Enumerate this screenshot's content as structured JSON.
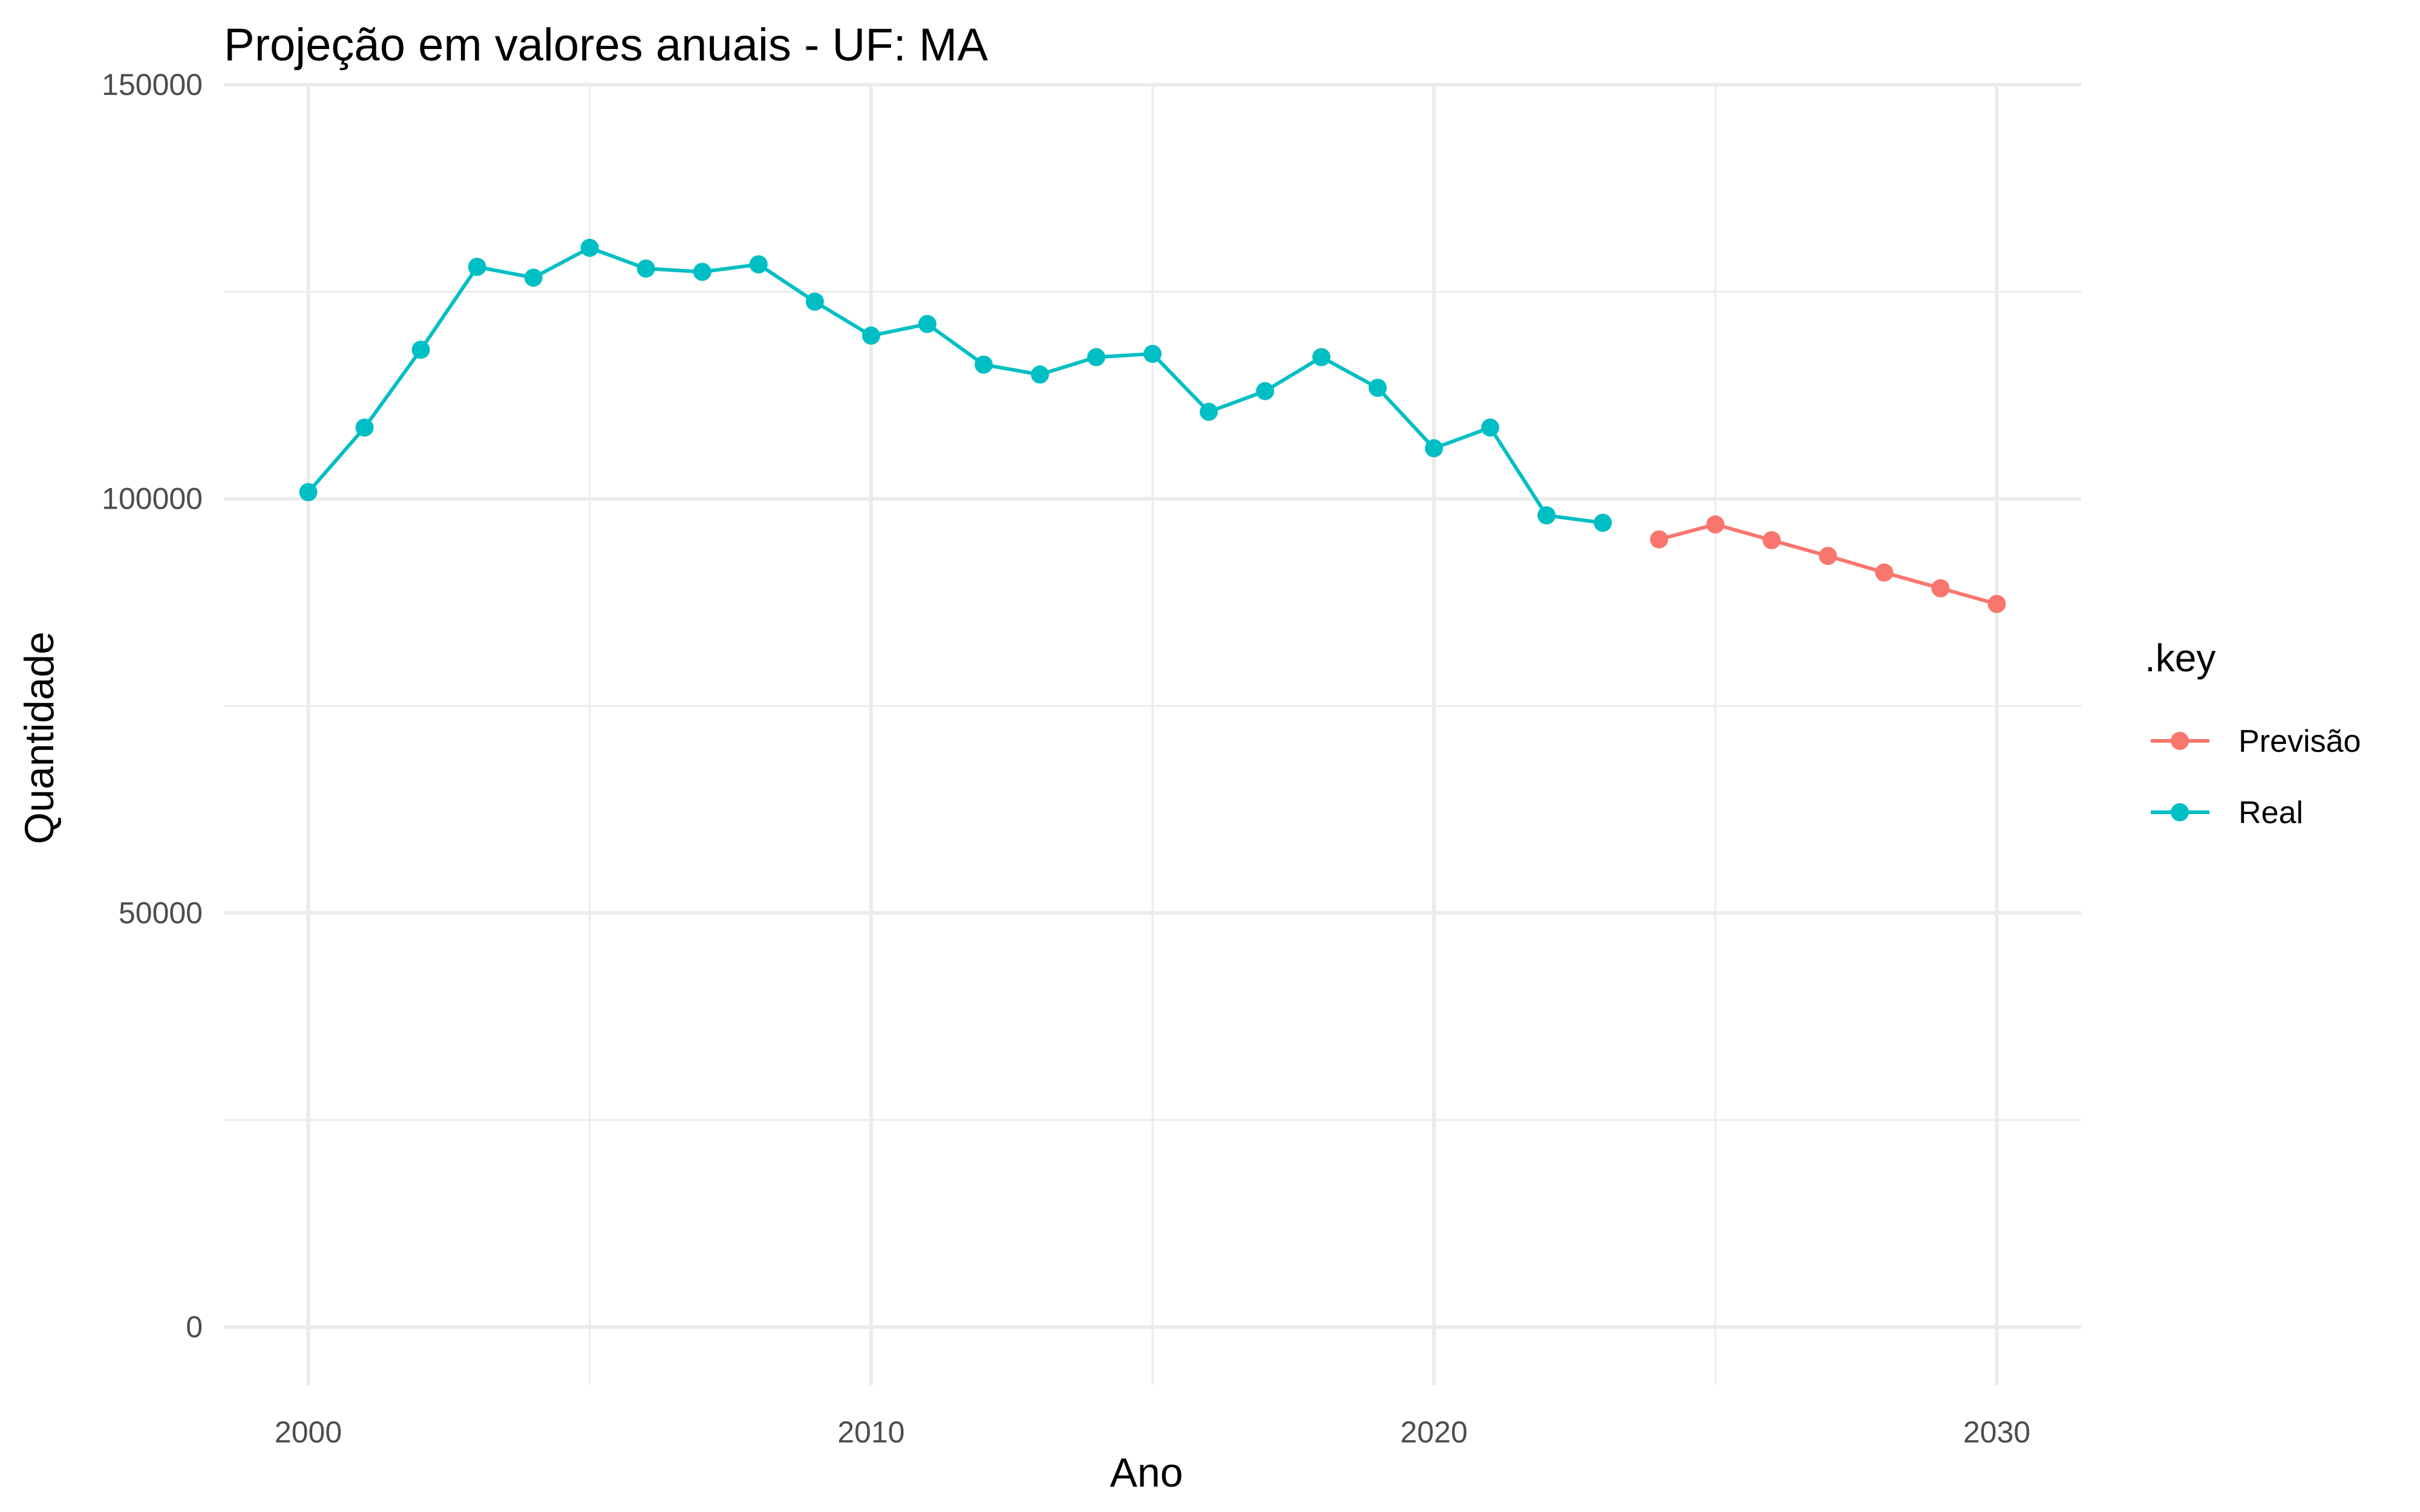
{
  "chart_data": {
    "type": "line",
    "title": "Projeção em valores anuais - UF: MA",
    "xlabel": "Ano",
    "ylabel": "Quantidade",
    "xlim": [
      1998.5,
      2031.5
    ],
    "ylim": [
      -7000,
      150000
    ],
    "x_ticks": [
      2000,
      2010,
      2020,
      2030
    ],
    "y_ticks": [
      0,
      50000,
      100000,
      150000
    ],
    "x_tick_labels": [
      "2000",
      "2010",
      "2020",
      "2030"
    ],
    "y_tick_labels": [
      "0",
      "50000",
      "100000",
      "150000"
    ],
    "grid": true,
    "legend": {
      "title": ".key",
      "position": "right"
    },
    "series": [
      {
        "name": "Previsão",
        "color": "#F8766D",
        "x": [
          2024,
          2025,
          2026,
          2027,
          2028,
          2029,
          2030
        ],
        "y": [
          95100,
          96900,
          95000,
          93100,
          91100,
          89200,
          87300
        ]
      },
      {
        "name": "Real",
        "color": "#00BFC4",
        "x": [
          2000,
          2001,
          2002,
          2003,
          2004,
          2005,
          2006,
          2007,
          2008,
          2009,
          2010,
          2011,
          2012,
          2013,
          2014,
          2015,
          2016,
          2017,
          2018,
          2019,
          2020,
          2021,
          2022,
          2023
        ],
        "y": [
          100800,
          108600,
          118000,
          128000,
          126700,
          130300,
          127800,
          127400,
          128300,
          123800,
          119700,
          121100,
          116200,
          115000,
          117100,
          117500,
          110500,
          113000,
          117100,
          113400,
          106100,
          108600,
          98000,
          97100
        ]
      }
    ]
  }
}
